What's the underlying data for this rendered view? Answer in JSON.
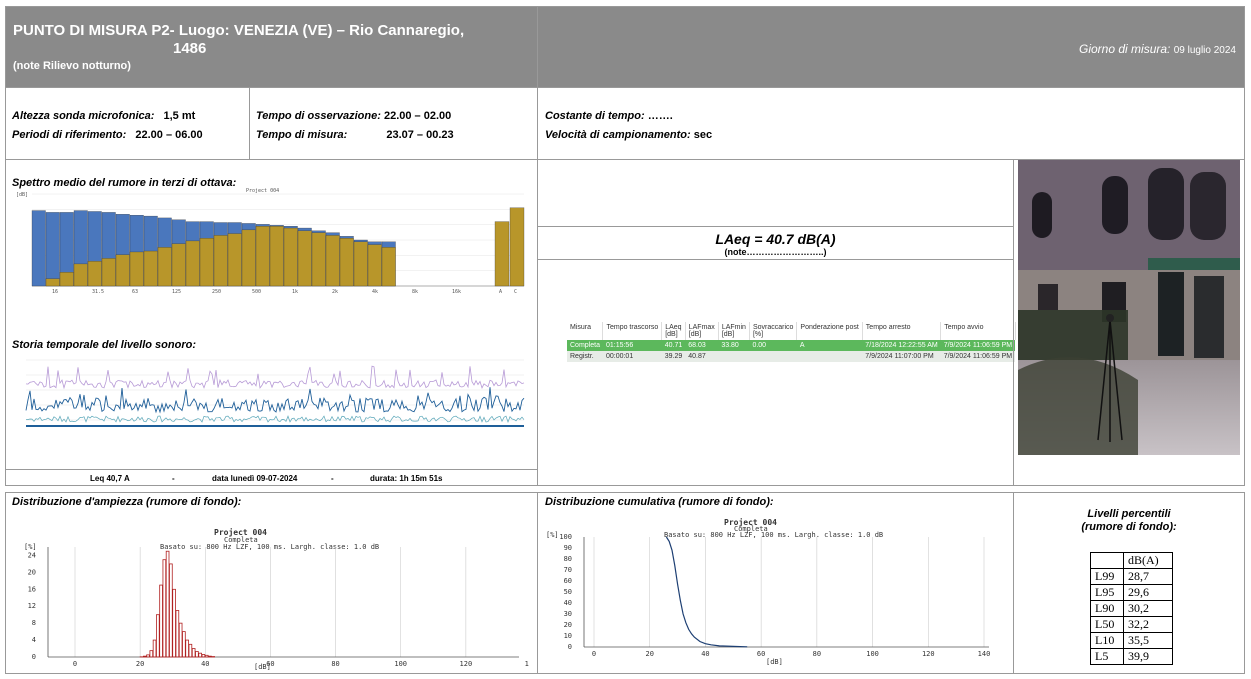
{
  "header": {
    "title_line1": "PUNTO DI MISURA P2- Luogo:  VENEZIA (VE) –  Rio Cannaregio,",
    "title_line2": "1486",
    "note": "(note Rilievo notturno)",
    "date_label": "Giorno di misura:",
    "date_value": "09 luglio 2024"
  },
  "info": {
    "altezza_label": "Altezza sonda microfonica:",
    "altezza_value": "1,5 mt",
    "periodi_label": "Periodi di riferimento:",
    "periodi_value": "22.00 – 06.00",
    "osservazione_label": "Tempo di osservazione:",
    "osservazione_value": "22.00 – 02.00",
    "misura_label": "Tempo di misura:",
    "misura_value": "23.07 – 00.23",
    "costante_label": "Costante di tempo:",
    "costante_value": "…….",
    "velocita_label": "Velocità di campionamento:",
    "velocita_value": "sec"
  },
  "spettro": {
    "title": "Spettro medio del rumore in terzi di ottava:",
    "chart_header": "Project 004",
    "xtick_labels": [
      "16",
      "31.5",
      "63",
      "125",
      "250",
      "500",
      "1k",
      "2k",
      "4k",
      "8k",
      "16k",
      "A",
      "C"
    ],
    "yunit": "[dB]"
  },
  "storia": {
    "title": "Storia temporale del livello sonoro:"
  },
  "footer": {
    "leq": "Leq 40,7 A",
    "sep1": "-",
    "data": "data lunedì 09-07-2024",
    "sep2": "-",
    "durata": "durata: 1h 15m 51s"
  },
  "laeq": {
    "value": "LAeq = 40.7 dB(A)",
    "note": "(note……………………..)"
  },
  "measure_table": {
    "headers": [
      "Misura",
      "Tempo trascorso",
      "LAeq [dB]",
      "LAFmax [dB]",
      "LAFmin [dB]",
      "Sovraccarico [%]",
      "Ponderazione post",
      "Tempo arresto",
      "Tempo avvio"
    ],
    "rows": [
      [
        "Completa",
        "01:15:56",
        "40.71",
        "68.03",
        "33.80",
        "0.00",
        "A",
        "7/18/2024 12:22:55 AM",
        "7/9/2024 11:06:59 PM"
      ],
      [
        "Registr.",
        "00:00:01",
        "39.29",
        "40.87",
        "",
        "",
        "",
        "7/9/2024 11:07:00 PM",
        "7/9/2024 11:06:59 PM"
      ]
    ]
  },
  "ampiezza": {
    "title": "Distribuzione d'ampiezza (rumore di fondo):",
    "chart_title": "Project 004",
    "chart_subtitle": "Completa",
    "chart_basis": "Basato su: 800 Hz  LZF, 100 ms. Largh. classe: 1.0 dB",
    "yunit": "[%]",
    "xunit": "[dB]",
    "y_ticks": [
      "24",
      "20",
      "16",
      "12",
      "8",
      "4",
      "0"
    ],
    "x_ticks": [
      "0",
      "20",
      "40",
      "60",
      "80",
      "100",
      "120",
      "140"
    ]
  },
  "cumulativa": {
    "title": "Distribuzione cumulativa (rumore di fondo):",
    "chart_title": "Project 004",
    "chart_subtitle": "Completa",
    "chart_basis": "Basato su: 800 Hz  LZF, 100 ms. Largh. classe: 1.0 dB",
    "yunit": "[%]",
    "xunit": "[dB]",
    "y_ticks": [
      "100",
      "90",
      "80",
      "70",
      "60",
      "50",
      "40",
      "30",
      "20",
      "10",
      "0"
    ],
    "x_ticks": [
      "0",
      "20",
      "40",
      "60",
      "80",
      "100",
      "120",
      "140"
    ]
  },
  "percentili": {
    "title_line1": "Livelli percentili",
    "title_line2": "(rumore di fondo):",
    "header": "dB(A)",
    "rows": [
      {
        "label": "L99",
        "value": "28,7"
      },
      {
        "label": "L95",
        "value": "29,6"
      },
      {
        "label": "L90",
        "value": "30,2"
      },
      {
        "label": "L50",
        "value": "32,2"
      },
      {
        "label": "L10",
        "value": "35,5"
      },
      {
        "label": "L5",
        "value": "39,9"
      }
    ]
  },
  "chart_data": [
    {
      "type": "bar",
      "title": "",
      "series": [
        {
          "name": "",
          "values": [
            82,
            80,
            80,
            82,
            81,
            80,
            78,
            77,
            76,
            74,
            72,
            70,
            70,
            69,
            69,
            68,
            67,
            66,
            65,
            63,
            60,
            58,
            54,
            50,
            48,
            48
          ]
        },
        {
          "name": "",
          "values": [
            0,
            8,
            15,
            24,
            27,
            30,
            34,
            37,
            38,
            42,
            46,
            49,
            52,
            55,
            57,
            61,
            65,
            65,
            63,
            60,
            58,
            55,
            52,
            48,
            45,
            42
          ]
        }
      ],
      "ylim": [
        0,
        100
      ],
      "ab_values": [
        70,
        85
      ]
    },
    {
      "type": "bar",
      "title": "",
      "series": [
        {
          "name": "",
          "x": [
            20,
            21,
            22,
            23,
            24,
            25,
            26,
            27,
            28,
            29,
            30,
            31,
            32,
            33,
            34,
            35,
            36,
            37,
            38,
            39,
            40,
            41,
            42
          ],
          "values": [
            0.05,
            0.2,
            0.5,
            1.5,
            4,
            10,
            17,
            23,
            25,
            22,
            16,
            11,
            8,
            6,
            4,
            3,
            2,
            1.3,
            0.9,
            0.6,
            0.4,
            0.2,
            0.1
          ]
        }
      ],
      "xlim": [
        0,
        140
      ],
      "ylim": [
        0,
        26
      ]
    },
    {
      "type": "line",
      "title": "",
      "series": [
        {
          "name": "",
          "x": [
            26,
            27,
            28,
            29,
            30,
            31,
            32,
            33,
            34,
            35,
            36,
            38,
            40,
            42,
            45,
            50,
            55
          ],
          "values": [
            100,
            96,
            88,
            74,
            57,
            42,
            30,
            22,
            16,
            12,
            9,
            5,
            3,
            2,
            1,
            0.5,
            0.2
          ]
        }
      ],
      "xlim": [
        0,
        140
      ],
      "ylim": [
        0,
        100
      ]
    }
  ]
}
